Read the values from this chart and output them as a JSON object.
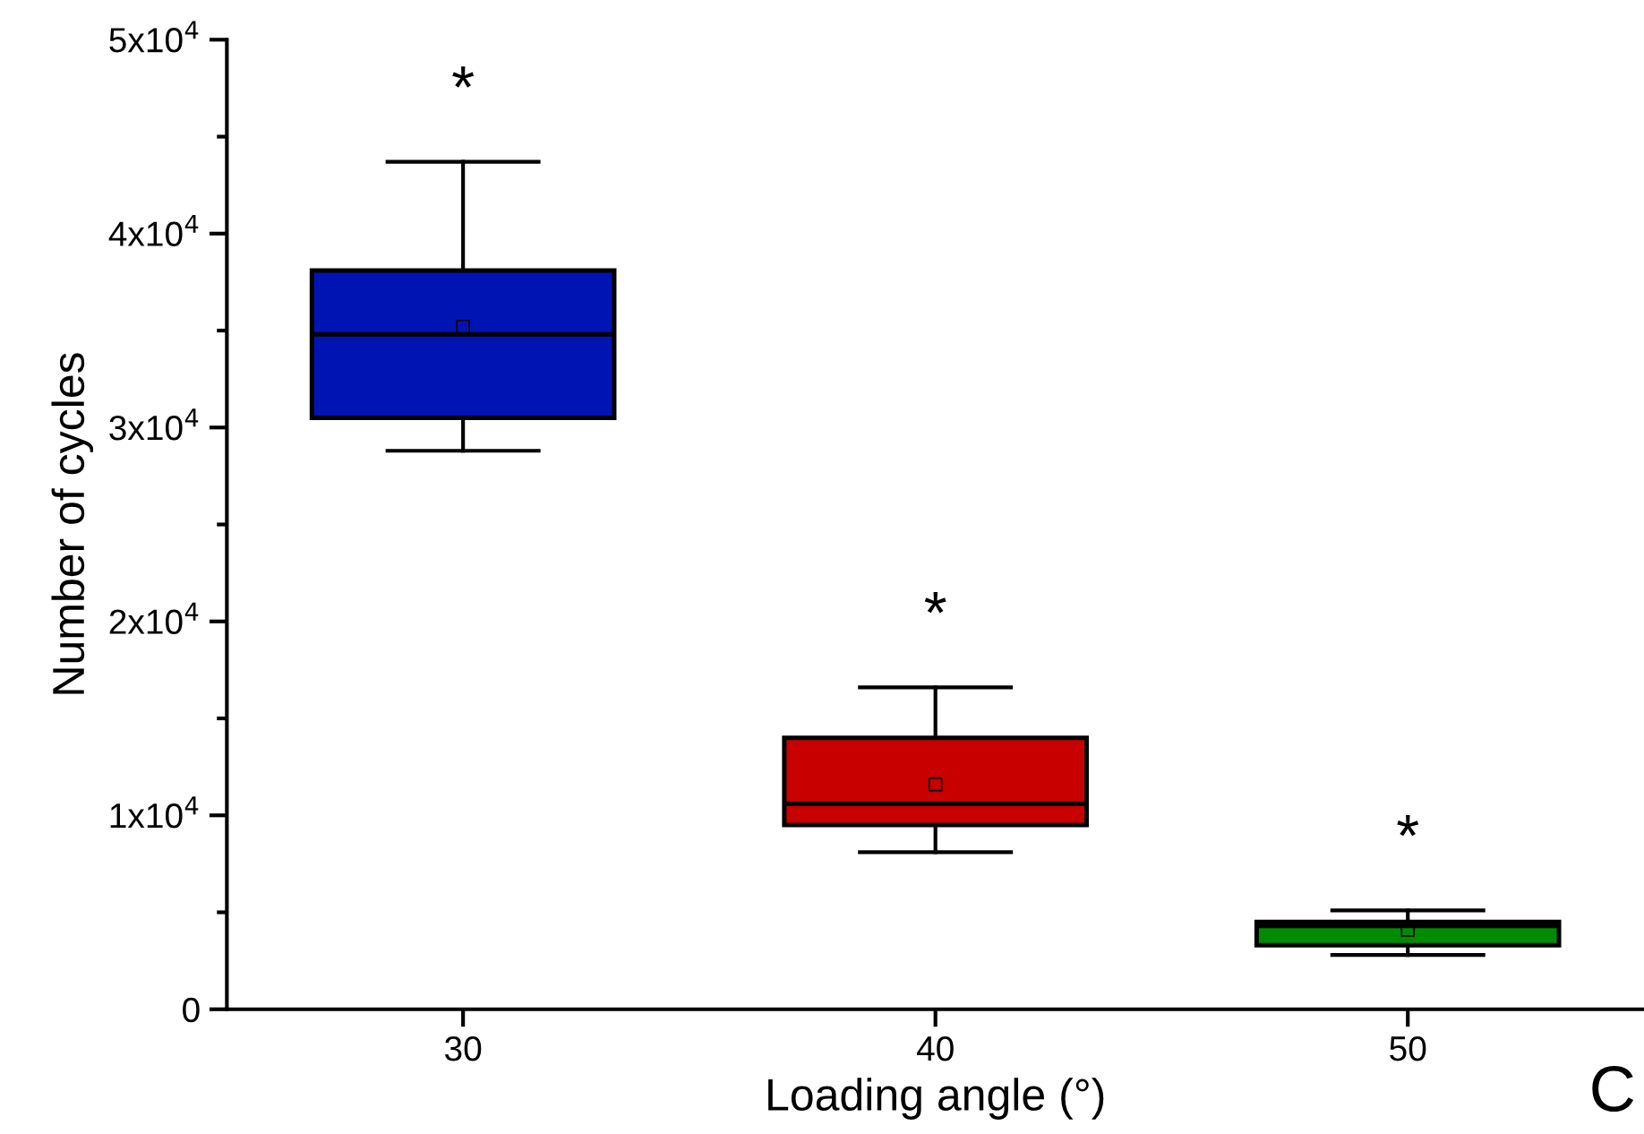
{
  "chart_data": {
    "type": "box",
    "xlabel": "Loading angle (°)",
    "ylabel": "Number of cycles",
    "categories": [
      "30",
      "40",
      "50"
    ],
    "colors": [
      "#0014b4",
      "#c80000",
      "#008c00"
    ],
    "boxes": [
      {
        "low": 28800,
        "q1": 30500,
        "median": 34800,
        "q3": 38100,
        "high": 43700,
        "mean": 35200
      },
      {
        "low": 8100,
        "q1": 9500,
        "median": 10600,
        "q3": 14000,
        "high": 16600,
        "mean": 11600
      },
      {
        "low": 2800,
        "q1": 3300,
        "median": 4300,
        "q3": 4500,
        "high": 5100,
        "mean": 4100
      }
    ],
    "ylim": [
      0,
      50000
    ],
    "yticks": [
      0,
      {
        "value": 10000,
        "label": "1x10$^{4}$"
      },
      {
        "value": 20000,
        "label": "2x10$^{4}$"
      },
      {
        "value": 30000,
        "label": "3x10$^{4}$"
      },
      {
        "value": 40000,
        "label": "4x10$^{4}$"
      },
      {
        "value": 50000,
        "label": "5x10$^{4}$"
      }
    ],
    "grid": false,
    "annotations": [
      "*",
      "*",
      "*",
      "C"
    ]
  }
}
